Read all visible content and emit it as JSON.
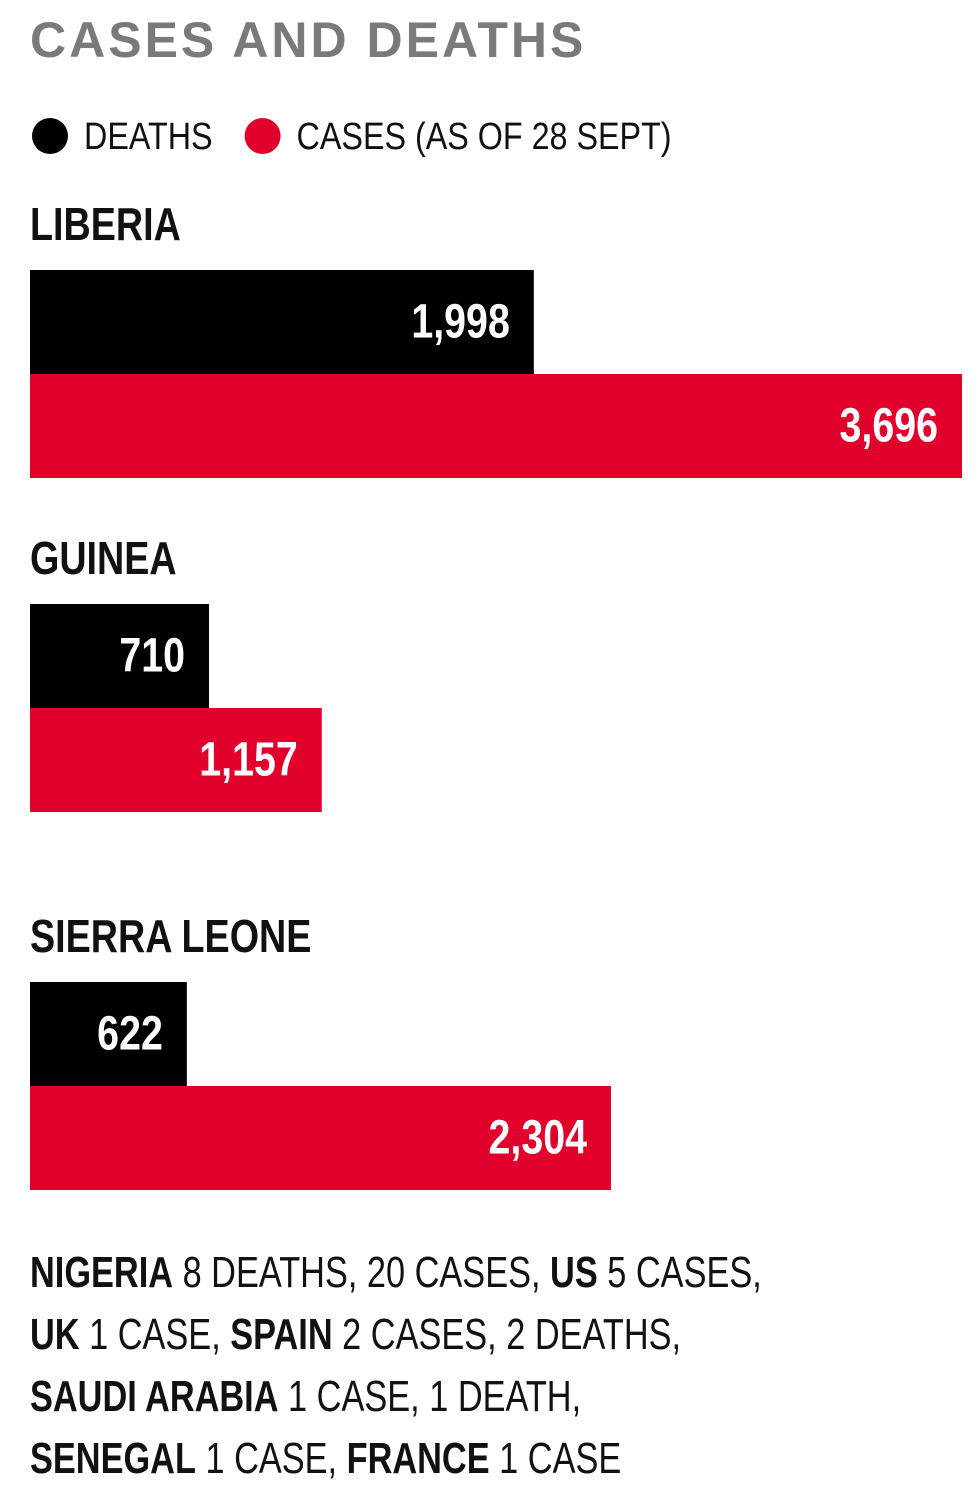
{
  "chart_data": {
    "type": "bar",
    "orientation": "horizontal",
    "title": "CASES AND DEATHS",
    "categories": [
      "LIBERIA",
      "GUINEA",
      "SIERRA LEONE"
    ],
    "series": [
      {
        "name": "DEATHS",
        "color": "#000000",
        "values": [
          1998,
          710,
          622
        ],
        "value_labels": [
          "1,998",
          "710",
          "622"
        ]
      },
      {
        "name": "CASES (AS OF 28 SEPT)",
        "color": "#e0002b",
        "values": [
          3696,
          1157,
          2304
        ],
        "value_labels": [
          "3,696",
          "1,157",
          "2,304"
        ]
      }
    ],
    "notes": [
      [
        {
          "country": "NIGERIA",
          "detail": "8 DEATHS, 20 CASES,"
        },
        {
          "country": "US",
          "detail": "5 CASES,"
        }
      ],
      [
        {
          "country": "UK",
          "detail": "1 CASE,"
        },
        {
          "country": "SPAIN",
          "detail": "2 CASES, 2 DEATHS,"
        }
      ],
      [
        {
          "country": "SAUDI ARABIA",
          "detail": "1 CASE, 1 DEATH,"
        }
      ],
      [
        {
          "country": "SENEGAL",
          "detail": "1 CASE,"
        },
        {
          "country": "FRANCE",
          "detail": "1 CASE"
        }
      ]
    ]
  }
}
